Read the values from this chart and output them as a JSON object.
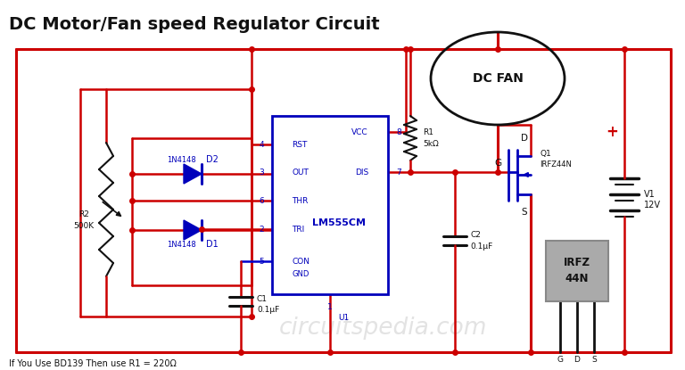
{
  "title": "DC Motor/Fan speed Regulator Circuit",
  "bg_color": "#ffffff",
  "red": "#cc0000",
  "blue": "#0000cc",
  "black": "#111111",
  "gray": "#888888",
  "lt_gray": "#aaaaaa",
  "comp_blue": "#0000bb",
  "watermark": "circuitspedia.com",
  "footnote": "If You Use BD139 Then use R1 = 220Ω",
  "fig_width": 7.68,
  "fig_height": 4.15,
  "dpi": 100
}
